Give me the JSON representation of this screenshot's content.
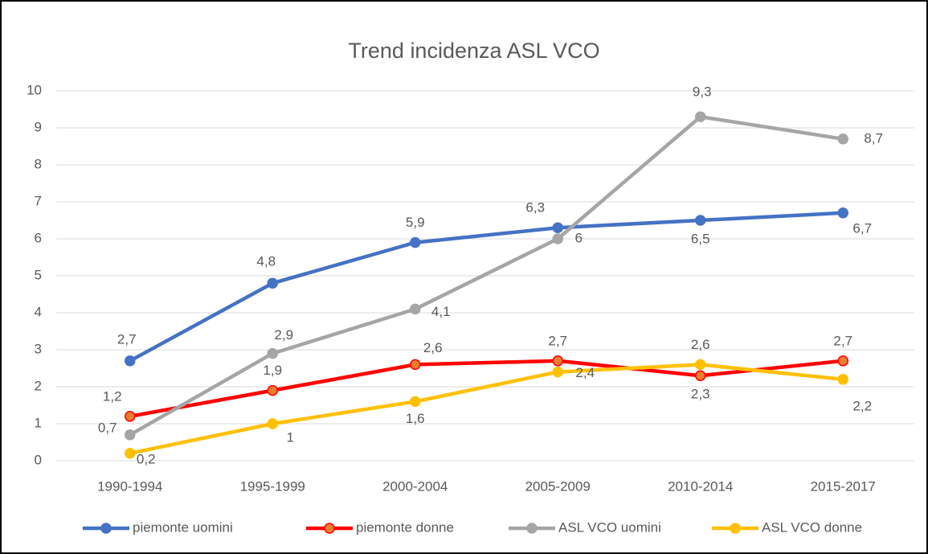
{
  "chart_data": {
    "type": "line",
    "title": "Trend incidenza ASL VCO",
    "categories": [
      "1990-1994",
      "1995-1999",
      "2000-2004",
      "2005-2009",
      "2010-2014",
      "2015-2017"
    ],
    "series": [
      {
        "name": "piemonte uomini",
        "color": "#4472c4",
        "values": [
          2.7,
          4.8,
          5.9,
          6.3,
          6.5,
          6.7
        ],
        "value_labels": [
          "2,7",
          "4,8",
          "5,9",
          "6,3",
          "6,5",
          "6,7"
        ]
      },
      {
        "name": "piemonte donne",
        "color": "#ff0000",
        "marker_color": "#ed7d31",
        "values": [
          1.2,
          1.9,
          2.6,
          2.7,
          2.3,
          2.7
        ],
        "value_labels": [
          "1,2",
          "1,9",
          "2,6",
          "2,7",
          "2,3",
          "2,7"
        ]
      },
      {
        "name": "ASL VCO uomini",
        "color": "#a5a5a5",
        "values": [
          0.7,
          2.9,
          4.1,
          6,
          9.3,
          8.7
        ],
        "value_labels": [
          "0,7",
          "2,9",
          "4,1",
          "6",
          "9,3",
          "8,7"
        ]
      },
      {
        "name": "ASL VCO donne",
        "color": "#ffc000",
        "values": [
          0.2,
          1,
          1.6,
          2.4,
          2.6,
          2.2
        ],
        "value_labels": [
          "0,2",
          "1",
          "1,6",
          "2,4",
          "2,6",
          "2,2"
        ]
      }
    ],
    "ylim": [
      0,
      10
    ],
    "yticks": [
      0,
      1,
      2,
      3,
      4,
      5,
      6,
      7,
      8,
      9,
      10
    ],
    "grid": true,
    "legend": "bottom"
  }
}
